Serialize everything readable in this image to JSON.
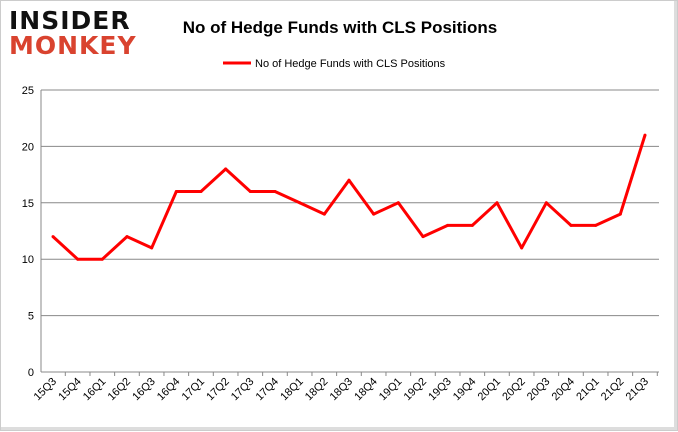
{
  "logo": {
    "line1": "INSIDER",
    "line2": "MONKEY"
  },
  "chart_data": {
    "type": "line",
    "title": "No of Hedge Funds with CLS Positions",
    "legend": "top",
    "grid": true,
    "ylim": [
      0,
      25
    ],
    "yticks": [
      0,
      5,
      10,
      15,
      20,
      25
    ],
    "categories": [
      "15Q3",
      "15Q4",
      "16Q1",
      "16Q2",
      "16Q3",
      "16Q4",
      "17Q1",
      "17Q2",
      "17Q3",
      "17Q4",
      "18Q1",
      "18Q2",
      "18Q3",
      "18Q4",
      "19Q1",
      "19Q2",
      "19Q3",
      "19Q4",
      "20Q1",
      "20Q2",
      "20Q3",
      "20Q4",
      "21Q1",
      "21Q2",
      "21Q3"
    ],
    "series": [
      {
        "name": "No of Hedge Funds with CLS Positions",
        "color": "#ff0000",
        "values": [
          12,
          10,
          10,
          12,
          11,
          16,
          16,
          18,
          16,
          16,
          15,
          14,
          17,
          14,
          15,
          12,
          13,
          13,
          15,
          11,
          15,
          13,
          13,
          14,
          21
        ]
      }
    ]
  }
}
